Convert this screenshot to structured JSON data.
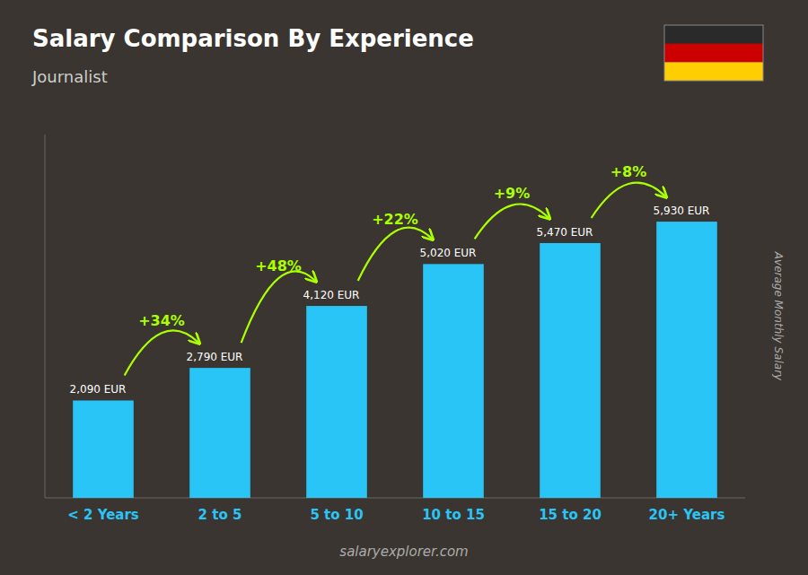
{
  "chart_data": {
    "type": "bar",
    "title": "Salary Comparison By Experience",
    "subtitle": "Journalist",
    "ylabel": "Average Monthly Salary",
    "watermark": "salaryexplorer.com",
    "categories": [
      "< 2 Years",
      "2 to 5",
      "5 to 10",
      "10 to 15",
      "15 to 20",
      "20+ Years"
    ],
    "values": [
      2090,
      2790,
      4120,
      5020,
      5470,
      5930
    ],
    "value_labels": [
      "2,090 EUR",
      "2,790 EUR",
      "4,120 EUR",
      "5,020 EUR",
      "5,470 EUR",
      "5,930 EUR"
    ],
    "data_labels": true,
    "annotations": [
      "+34%",
      "+48%",
      "+22%",
      "+9%",
      "+8%"
    ],
    "color": "#29c5f6",
    "ylim": [
      0,
      7800
    ],
    "tick_labels": "x",
    "grid": false
  }
}
